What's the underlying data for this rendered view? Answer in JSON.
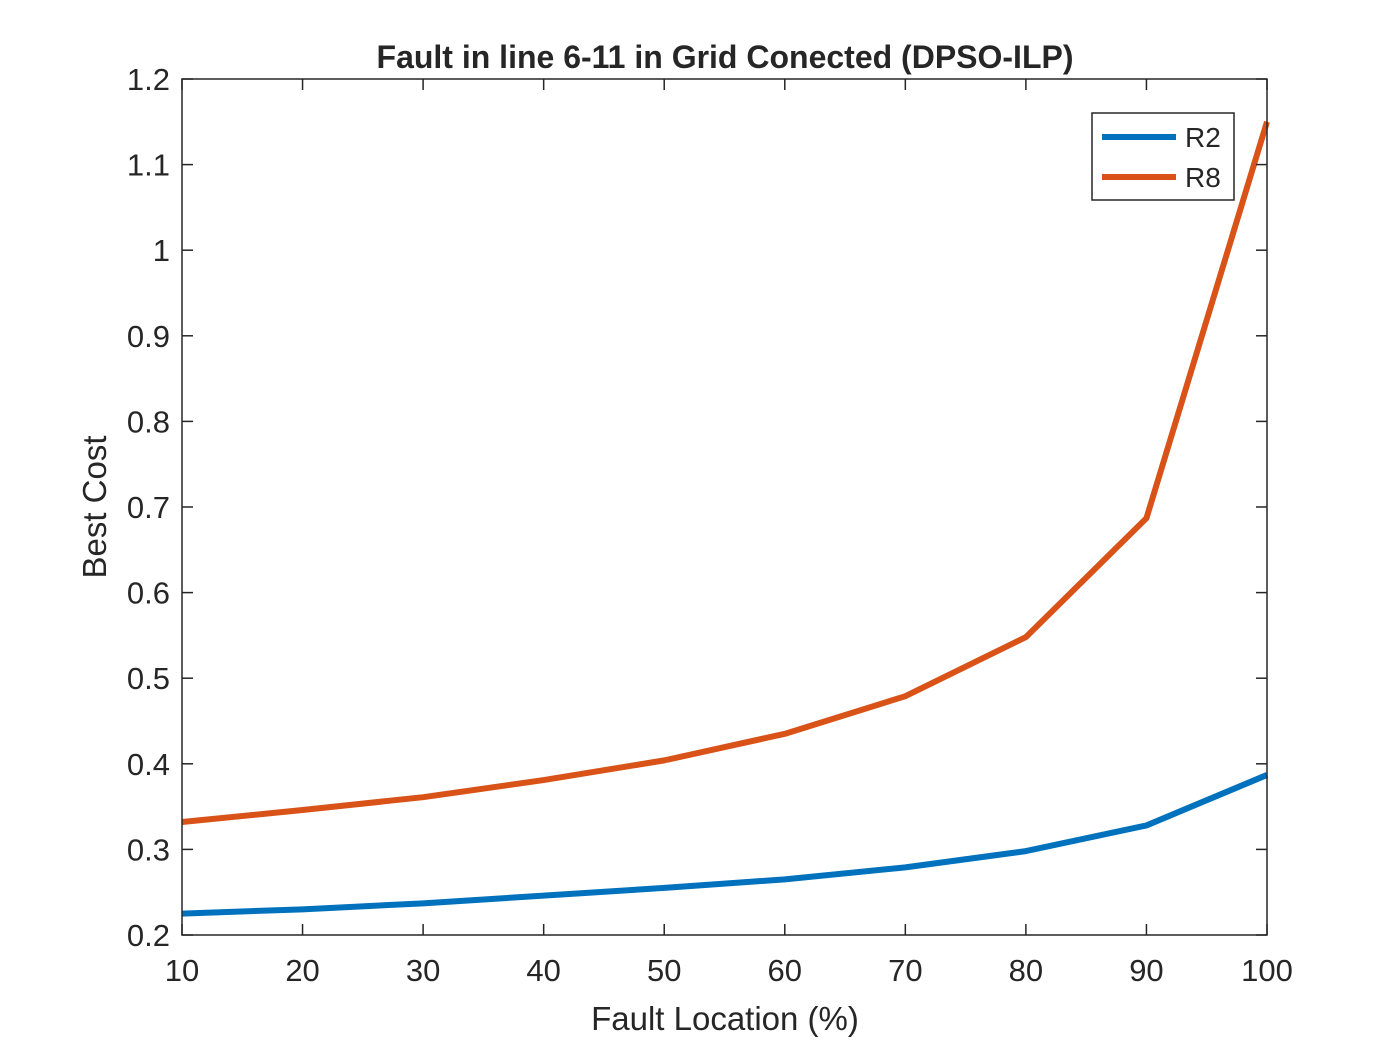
{
  "chart_data": {
    "type": "line",
    "title": "Fault in line 6-11 in Grid Conected (DPSO-ILP)",
    "xlabel": "Fault Location (%)",
    "ylabel": "Best Cost",
    "xlim": [
      10,
      100
    ],
    "ylim": [
      0.2,
      1.2
    ],
    "xticks": [
      10,
      20,
      30,
      40,
      50,
      60,
      70,
      80,
      90,
      100
    ],
    "yticks": [
      0.2,
      0.3,
      0.4,
      0.5,
      0.6,
      0.7,
      0.8,
      0.9,
      1,
      1.1,
      1.2
    ],
    "ytick_labels": [
      "0.2",
      "0.3",
      "0.4",
      "0.5",
      "0.6",
      "0.7",
      "0.8",
      "0.9",
      "1",
      "1.1",
      "1.2"
    ],
    "grid": false,
    "legend_position": "top-right",
    "x": [
      10,
      20,
      30,
      40,
      50,
      60,
      70,
      80,
      90,
      100
    ],
    "series": [
      {
        "name": "R2",
        "color": "#0072BD",
        "values": [
          0.225,
          0.23,
          0.237,
          0.246,
          0.255,
          0.265,
          0.279,
          0.298,
          0.328,
          0.387
        ]
      },
      {
        "name": "R8",
        "color": "#D95319",
        "values": [
          0.332,
          0.346,
          0.361,
          0.381,
          0.404,
          0.435,
          0.479,
          0.548,
          0.687,
          1.15
        ]
      }
    ]
  }
}
